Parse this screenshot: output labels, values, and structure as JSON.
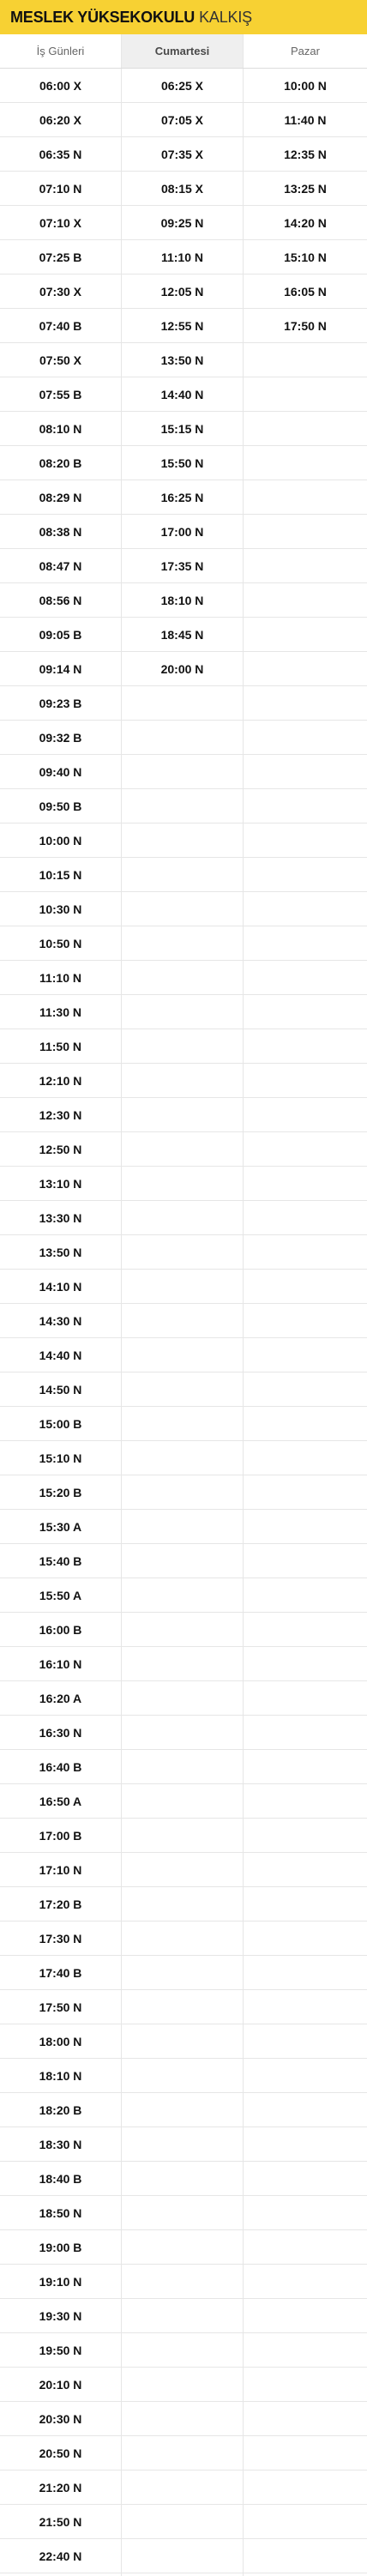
{
  "header": {
    "title": "MESLEK YÜKSEKOKULU",
    "subtitle": "KALKIŞ",
    "accent_color": "#f7d133"
  },
  "tabs": [
    {
      "label": "İş Günleri",
      "active": false
    },
    {
      "label": "Cumartesi",
      "active": true
    },
    {
      "label": "Pazar",
      "active": false
    }
  ],
  "schedule": {
    "weekdays": [
      "06:00 X",
      "06:20 X",
      "06:35 N",
      "07:10 N",
      "07:10 X",
      "07:25 B",
      "07:30 X",
      "07:40 B",
      "07:50 X",
      "07:55 B",
      "08:10 N",
      "08:20 B",
      "08:29 N",
      "08:38 N",
      "08:47 N",
      "08:56 N",
      "09:05 B",
      "09:14 N",
      "09:23 B",
      "09:32 B",
      "09:40 N",
      "09:50 B",
      "10:00 N",
      "10:15 N",
      "10:30 N",
      "10:50 N",
      "11:10 N",
      "11:30 N",
      "11:50 N",
      "12:10 N",
      "12:30 N",
      "12:50 N",
      "13:10 N",
      "13:30 N",
      "13:50 N",
      "14:10 N",
      "14:30 N",
      "14:40 N",
      "14:50 N",
      "15:00 B",
      "15:10 N",
      "15:20 B",
      "15:30 A",
      "15:40 B",
      "15:50 A",
      "16:00 B",
      "16:10 N",
      "16:20 A",
      "16:30 N",
      "16:40 B",
      "16:50 A",
      "17:00 B",
      "17:10 N",
      "17:20 B",
      "17:30 N",
      "17:40 B",
      "17:50 N",
      "18:00 N",
      "18:10 N",
      "18:20 B",
      "18:30 N",
      "18:40 B",
      "18:50 N",
      "19:00 B",
      "19:10 N",
      "19:30 N",
      "19:50 N",
      "20:10 N",
      "20:30 N",
      "20:50 N",
      "21:20 N",
      "21:50 N",
      "22:40 N"
    ],
    "saturday": [
      "06:25 X",
      "07:05 X",
      "07:35 X",
      "08:15 X",
      "09:25 N",
      "11:10 N",
      "12:05 N",
      "12:55 N",
      "13:50 N",
      "14:40 N",
      "15:15 N",
      "15:50 N",
      "16:25 N",
      "17:00 N",
      "17:35 N",
      "18:10 N",
      "18:45 N",
      "20:00 N"
    ],
    "sunday": [
      "10:00 N",
      "11:40 N",
      "12:35 N",
      "13:25 N",
      "14:20 N",
      "15:10 N",
      "16:05 N",
      "17:50 N"
    ]
  }
}
